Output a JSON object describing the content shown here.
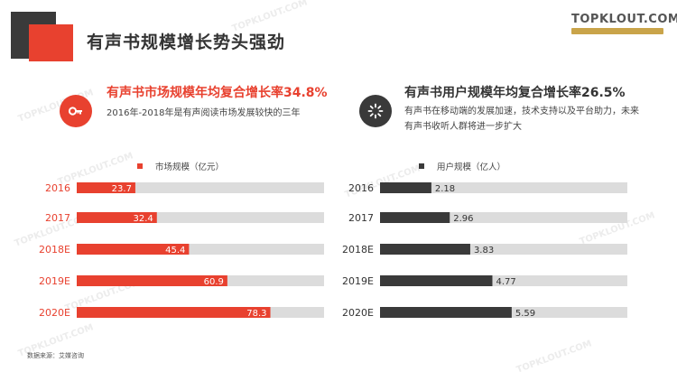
{
  "title": "有声书规模增长势头强劲",
  "logo": {
    "name": "TOPKLOUT.COM",
    "strip_text": ""
  },
  "watermark_text": "TOPKLOUT.COM",
  "left_panel": {
    "icon": "key-icon",
    "title": "有声书市场规模年均复合增长率34.8%",
    "subtitle": "2016年-2018年是有声阅读市场发展较快的三年"
  },
  "right_panel": {
    "icon": "spinner-icon",
    "title": "有声书用户规模年均复合增长率26.5%",
    "subtitle": "有声书在移动端的发展加速，技术支持以及平台助力，未来有声书收听人群将进一步扩大"
  },
  "source": "数据来源：艾媒咨询",
  "colors": {
    "accent": "#e8412f",
    "dark": "#3a3a3a",
    "track": "#dcdcdc"
  },
  "chart_data": [
    {
      "type": "bar",
      "orientation": "horizontal",
      "categories": [
        "2016",
        "2017",
        "2018E",
        "2019E",
        "2020E"
      ],
      "series": [
        {
          "name": "市场规模（亿元）",
          "values": [
            23.7,
            32.4,
            45.4,
            60.9,
            78.3
          ]
        }
      ],
      "xlim": [
        0,
        100
      ],
      "grid": false,
      "legend": "top"
    },
    {
      "type": "bar",
      "orientation": "horizontal",
      "categories": [
        "2016",
        "2017",
        "2018E",
        "2019E",
        "2020E"
      ],
      "series": [
        {
          "name": "用户规模（亿人）",
          "values": [
            2.18,
            2.96,
            3.83,
            4.77,
            5.59
          ]
        }
      ],
      "xlim": [
        0,
        10.5
      ],
      "grid": false,
      "legend": "top"
    }
  ]
}
